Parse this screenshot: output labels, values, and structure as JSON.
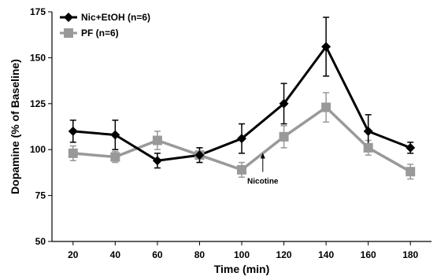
{
  "chart_data": {
    "type": "line",
    "title": "",
    "xlabel": "Time (min)",
    "ylabel": "Dopamine (% of Baseline)",
    "x": [
      20,
      40,
      60,
      80,
      100,
      120,
      140,
      160,
      180
    ],
    "xlim": [
      10,
      190
    ],
    "ylim": [
      50,
      175
    ],
    "yticks": [
      50,
      75,
      100,
      125,
      150,
      175
    ],
    "grid": false,
    "legend_position": "top-left",
    "series": [
      {
        "name": "Nic+EtOH (n=6)",
        "color": "#000000",
        "marker": "diamond",
        "values": [
          110,
          108,
          94,
          97,
          106,
          125,
          156,
          110,
          101
        ],
        "errors": [
          6,
          8,
          4,
          4,
          8,
          11,
          16,
          9,
          3
        ]
      },
      {
        "name": "PF (n=6)",
        "color": "#999999",
        "marker": "square",
        "values": [
          98,
          96,
          105,
          97,
          89,
          107,
          123,
          101,
          88
        ],
        "errors": [
          4,
          3,
          5,
          4,
          4,
          6,
          8,
          4,
          4
        ]
      }
    ],
    "annotations": [
      {
        "text": "Nicotine",
        "x": 110,
        "y": 93
      }
    ]
  }
}
